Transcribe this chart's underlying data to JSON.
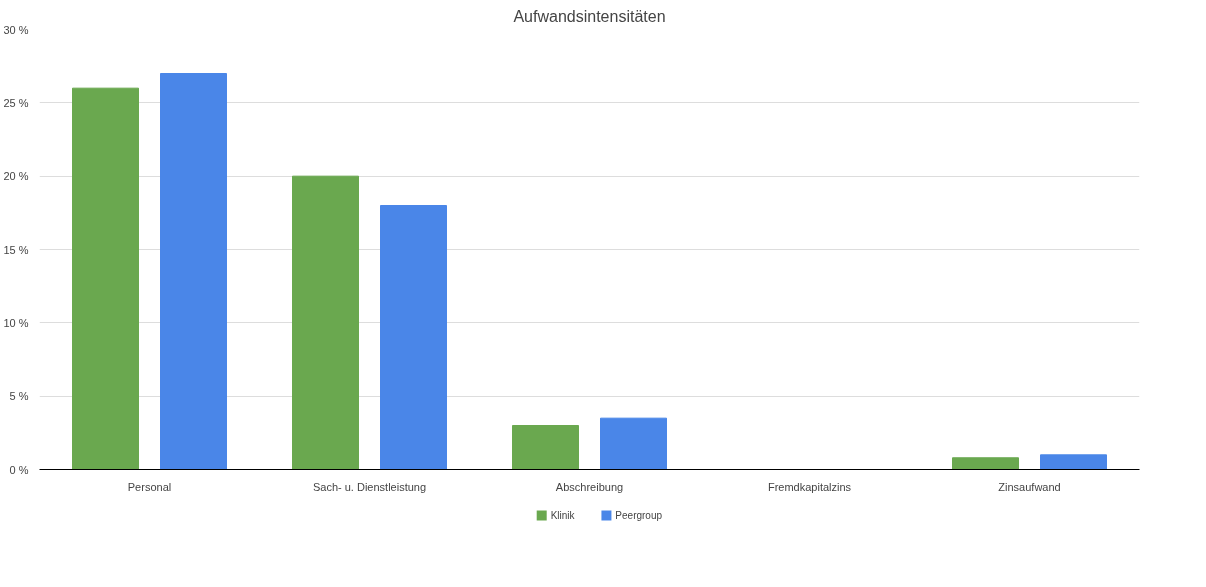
{
  "chart_data": {
    "type": "bar",
    "title": "Aufwandsintensitäten",
    "categories": [
      "Personal",
      "Sach- u. Dienstleistung",
      "Abschreibung",
      "Fremdkapitalzins",
      "Zinsaufwand"
    ],
    "series": [
      {
        "name": "Klinik",
        "color": "#6aa84f",
        "values": [
          26,
          20,
          3,
          0,
          0.8
        ]
      },
      {
        "name": "Peergroup",
        "color": "#4a86e8",
        "values": [
          27,
          18,
          3.5,
          0,
          1
        ]
      }
    ],
    "ylim": [
      0,
      30
    ],
    "yticks": [
      {
        "value": 0,
        "label": "0 %"
      },
      {
        "value": 5,
        "label": "5 %"
      },
      {
        "value": 10,
        "label": "10 %"
      },
      {
        "value": 15,
        "label": "15 %"
      },
      {
        "value": 20,
        "label": "20 %"
      },
      {
        "value": 25,
        "label": "25 %"
      },
      {
        "value": 30,
        "label": "30 %"
      }
    ],
    "grid": "y",
    "legend": "bottom"
  }
}
